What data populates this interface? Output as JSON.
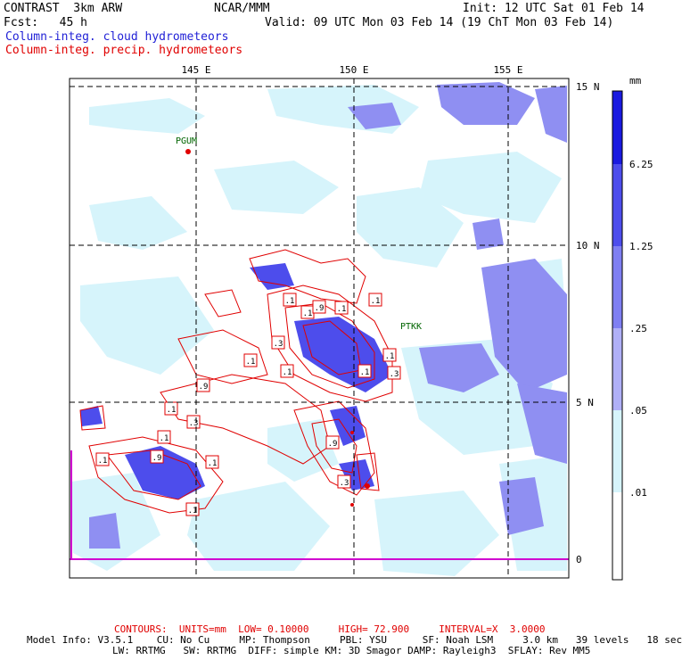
{
  "header": {
    "title": "CONTRAST  3km ARW",
    "center": "NCAR/MMM",
    "init": "Init: 12 UTC Sat 01 Feb 14",
    "forecast": "Fcst:   45 h",
    "valid": "Valid: 09 UTC Mon 03 Feb 14 (19 ChT Mon 03 Feb 14)"
  },
  "legend": {
    "cloud": "Column-integ. cloud hydrometeors",
    "precip": "Column-integ. precip. hydrometeors",
    "cloud_color": "#1f1fd6",
    "precip_color": "#e00000"
  },
  "map": {
    "lon_labels": [
      "145 E",
      "150 E",
      "155 E"
    ],
    "lat_labels": [
      "15 N",
      "10 N",
      "5 N",
      "0"
    ],
    "stations": [
      "PGUM",
      "PTKK"
    ],
    "contour_labels": [
      ".1",
      ".1",
      ".9",
      ".1",
      ".1",
      ".3",
      ".1",
      ".1",
      ".1",
      ".3",
      ".9",
      ".1",
      ".3",
      ".1",
      ".1",
      ".9",
      ".1",
      ".1",
      ".9",
      ".3",
      ".1"
    ]
  },
  "colorbar": {
    "unit": "mm",
    "labels": [
      "6.25",
      "1.25",
      ".25",
      ".05",
      ".01"
    ],
    "colors": [
      "#1a1ae0",
      "#4d4dec",
      "#7f7ff2",
      "#b0b0f7",
      "#d6f4fb",
      "#ffffff"
    ]
  },
  "footer": {
    "contours": "CONTOURS:  UNITS=mm  LOW= 0.10000     HIGH= 72.900     INTERVAL=X  3.0000",
    "model_line1": "Model Info: V3.5.1    CU: No Cu     MP: Thompson     PBL: YSU      SF: Noah LSM     3.0 km   39 levels   18 sec",
    "model_line2": "LW: RRTMG   SW: RRTMG  DIFF: simple KM: 3D Smagor DAMP: Rayleigh3  SFLAY: Rev MM5"
  }
}
